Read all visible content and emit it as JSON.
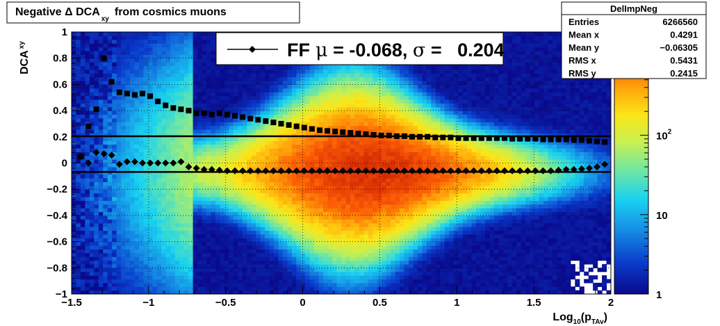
{
  "chart_data": {
    "type": "heatmap",
    "title_main": "Negative Δ DCA",
    "title_sub": "xy",
    "title_tail": "from cosmics muons",
    "xlabel_main": "Log",
    "xlabel_sub1": "10",
    "xlabel_mid": "(p",
    "xlabel_sub2": "TAv",
    "xlabel_tail": ")",
    "ylabel_main": "DCA",
    "ylabel_sub": "xy",
    "xlim": [
      -1.5,
      2
    ],
    "ylim": [
      -1,
      1
    ],
    "x_ticks": [
      -1.5,
      -1,
      -0.5,
      0,
      0.5,
      1,
      1.5,
      2
    ],
    "x_tick_labels": [
      "−1.5",
      "−1",
      "−0.5",
      "0",
      "0.5",
      "1",
      "1.5",
      "2"
    ],
    "y_ticks": [
      -1,
      -0.8,
      -0.6,
      -0.4,
      -0.2,
      0,
      0.2,
      0.4,
      0.6,
      0.8,
      1
    ],
    "y_tick_labels": [
      "−1",
      "−0.8",
      "−0.6",
      "−0.4",
      "−0.2",
      "0",
      "0.2",
      "0.4",
      "0.6",
      "0.8",
      "1"
    ],
    "grid": true,
    "z_scale": "log",
    "z_ticks": [
      {
        "value": 1,
        "label": "1"
      },
      {
        "value": 10,
        "label": "10"
      },
      {
        "value": 100,
        "label": "10",
        "exp": "2"
      }
    ],
    "z_max": 2000,
    "stats_box": {
      "title": "DelImpNeg",
      "rows": [
        {
          "label": "Entries",
          "value": "6266560"
        },
        {
          "label": "Mean x",
          "value": "0.4291"
        },
        {
          "label": "Mean y",
          "value": "−0.06305"
        },
        {
          "label": "RMS x",
          "value": "0.5431"
        },
        {
          "label": "RMS y",
          "value": "0.2415"
        }
      ]
    },
    "legend": {
      "placement": "top-center",
      "prefix": "FF",
      "mu_symbol": "μ",
      "mu_text": " = -0.068, ",
      "sigma_symbol": "σ",
      "sigma_text": " =   0.204"
    },
    "fit_lines": [
      {
        "label": "mean",
        "y": -0.068
      },
      {
        "label": "mean + sigma",
        "y": 0.204
      }
    ],
    "series": [
      {
        "marker": "square",
        "x": [
          -1.44,
          -1.39,
          -1.34,
          -1.29,
          -1.24,
          -1.19,
          -1.14,
          -1.09,
          -1.04,
          -0.99,
          -0.94,
          -0.89,
          -0.84,
          -0.79,
          -0.74,
          -0.69,
          -0.64,
          -0.59,
          -0.54,
          -0.49,
          -0.44,
          -0.39,
          -0.34,
          -0.29,
          -0.24,
          -0.19,
          -0.14,
          -0.09,
          -0.04,
          0.01,
          0.06,
          0.11,
          0.16,
          0.21,
          0.26,
          0.31,
          0.36,
          0.41,
          0.46,
          0.51,
          0.56,
          0.61,
          0.66,
          0.71,
          0.76,
          0.81,
          0.86,
          0.91,
          0.96,
          1.01,
          1.06,
          1.11,
          1.16,
          1.21,
          1.26,
          1.31,
          1.36,
          1.41,
          1.46,
          1.51,
          1.56,
          1.61,
          1.66,
          1.71,
          1.76,
          1.81,
          1.86,
          1.91,
          1.96
        ],
        "y": [
          0.05,
          0.28,
          0.41,
          0.8,
          0.62,
          0.54,
          0.53,
          0.52,
          0.53,
          0.51,
          0.47,
          0.44,
          0.42,
          0.41,
          0.4,
          0.38,
          0.38,
          0.37,
          0.38,
          0.37,
          0.36,
          0.35,
          0.34,
          0.33,
          0.32,
          0.31,
          0.3,
          0.29,
          0.28,
          0.27,
          0.26,
          0.25,
          0.245,
          0.24,
          0.235,
          0.23,
          0.225,
          0.22,
          0.215,
          0.21,
          0.21,
          0.205,
          0.205,
          0.2,
          0.2,
          0.2,
          0.195,
          0.195,
          0.195,
          0.19,
          0.19,
          0.19,
          0.19,
          0.19,
          0.19,
          0.19,
          0.185,
          0.185,
          0.185,
          0.185,
          0.18,
          0.18,
          0.18,
          0.18,
          0.175,
          0.175,
          0.17,
          0.165,
          0.16
        ]
      },
      {
        "marker": "diamond",
        "x": [
          -1.44,
          -1.39,
          -1.34,
          -1.29,
          -1.24,
          -1.19,
          -1.14,
          -1.09,
          -1.04,
          -0.99,
          -0.94,
          -0.89,
          -0.84,
          -0.79,
          -0.74,
          -0.69,
          -0.64,
          -0.59,
          -0.54,
          -0.49,
          -0.44,
          -0.39,
          -0.34,
          -0.29,
          -0.24,
          -0.19,
          -0.14,
          -0.09,
          -0.04,
          0.01,
          0.06,
          0.11,
          0.16,
          0.21,
          0.26,
          0.31,
          0.36,
          0.41,
          0.46,
          0.51,
          0.56,
          0.61,
          0.66,
          0.71,
          0.76,
          0.81,
          0.86,
          0.91,
          0.96,
          1.01,
          1.06,
          1.11,
          1.16,
          1.21,
          1.26,
          1.31,
          1.36,
          1.41,
          1.46,
          1.51,
          1.56,
          1.61,
          1.66,
          1.71,
          1.76,
          1.81,
          1.86,
          1.91,
          1.96
        ],
        "y": [
          0.05,
          0.0,
          0.08,
          0.07,
          0.06,
          -0.01,
          0.01,
          0.01,
          0.0,
          0.0,
          0.0,
          0.0,
          0.0,
          0.01,
          -0.03,
          -0.04,
          -0.05,
          -0.05,
          -0.055,
          -0.06,
          -0.06,
          -0.06,
          -0.06,
          -0.06,
          -0.06,
          -0.06,
          -0.06,
          -0.06,
          -0.06,
          -0.06,
          -0.06,
          -0.06,
          -0.06,
          -0.06,
          -0.06,
          -0.06,
          -0.06,
          -0.06,
          -0.06,
          -0.06,
          -0.06,
          -0.06,
          -0.06,
          -0.06,
          -0.06,
          -0.06,
          -0.06,
          -0.06,
          -0.06,
          -0.06,
          -0.06,
          -0.06,
          -0.06,
          -0.06,
          -0.06,
          -0.06,
          -0.06,
          -0.06,
          -0.06,
          -0.06,
          -0.06,
          -0.06,
          -0.055,
          -0.05,
          -0.05,
          -0.045,
          -0.04,
          -0.03,
          -0.01
        ]
      }
    ]
  }
}
